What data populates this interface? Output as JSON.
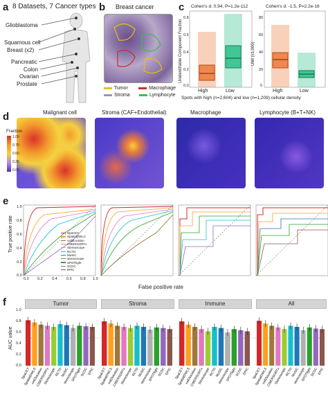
{
  "panels": {
    "a": {
      "label": "a",
      "title": "8 Datasets, 7 Cancer types",
      "sites": [
        "Glioblastoma",
        "Squamous cell",
        "Breast (x2)",
        "Pancreatic",
        "Colon",
        "Ovarian",
        "Prostate"
      ]
    },
    "b": {
      "label": "b",
      "title": "Breast cancer",
      "legend": [
        {
          "name": "Tumor",
          "color": "#e8c200"
        },
        {
          "name": "Macrophage",
          "color": "#cc2a2a"
        },
        {
          "name": "Stroma",
          "color": "#9a9a9a"
        },
        {
          "name": "Lymphocyte",
          "color": "#39c050"
        }
      ]
    },
    "c": {
      "label": "c",
      "left_title": "Cohen's d: 0.94, P=1.2e-112",
      "right_title": "Cohen's d: -1.5, P=2.2e-16",
      "left_ylabel": "Unidentifiable Component Fraction",
      "right_ylabel": "UMI (x1,000)",
      "xlabel": "Spots with high (n=2,604) and low (n=1,209) cellular density",
      "categories": [
        "High",
        "Low"
      ],
      "left_yticks": [
        "0.0",
        "0.2",
        "0.4",
        "0.6",
        "0.8"
      ],
      "right_yticks": [
        "0",
        "20",
        "40",
        "60",
        "80"
      ],
      "colors": {
        "high": "#ee7a3a",
        "low": "#2fbf8a"
      }
    },
    "d": {
      "label": "d",
      "titles": [
        "Malignant cell",
        "Stroma (CAF+Endothelial)",
        "Macrophage",
        "Lymphocyte (B+T+NK)"
      ],
      "legend_title": "Fraction",
      "legend_ticks": [
        "1.00",
        "0.75",
        "0.50",
        "0.25",
        "0.00"
      ]
    },
    "e": {
      "label": "e",
      "ylabel": "True positive rate",
      "xlabel": "False positive rate",
      "ticks": [
        "0.0",
        "0.2",
        "0.4",
        "0.6",
        "0.8",
        "1.0"
      ],
      "methods": [
        {
          "name": "SpaCET",
          "color": "#d62728"
        },
        {
          "name": "SpatialDWLS",
          "color": "#ff9f1c"
        },
        {
          "name": "cell2location",
          "color": "#8c6d31"
        },
        {
          "name": "CIBERSORTx",
          "color": "#e377c2"
        },
        {
          "name": "Stereoscope",
          "color": "#bcbd22"
        },
        {
          "name": "RCTD",
          "color": "#17becf"
        },
        {
          "name": "MuSiC",
          "color": "#1f77b4"
        },
        {
          "name": "stereoscope",
          "color": "#7f7f7f"
        },
        {
          "name": "SPOTlight",
          "color": "#2ca02c"
        },
        {
          "name": "SCDC",
          "color": "#9467bd"
        },
        {
          "name": "EPIC",
          "color": "#8c564b"
        }
      ]
    },
    "f": {
      "label": "f",
      "ylabel": "AUC value",
      "yticks": [
        "1.0",
        "0.8",
        "0.6",
        "0.4",
        "0.2",
        "0.0"
      ],
      "groups": [
        "Tumor",
        "Stroma",
        "Immune",
        "All"
      ],
      "methods": [
        "SpaCET",
        "SpatialDWLS",
        "cell2location",
        "CIBERSORTx",
        "Stereoscope",
        "RCTD",
        "MuSiC",
        "stereoscope",
        "SPOTlight",
        "SCDC",
        "EPIC"
      ],
      "colors": [
        "#d62728",
        "#ff9f1c",
        "#a0783a",
        "#e377c2",
        "#9acd32",
        "#17becf",
        "#1f77b4",
        "#b0b0b0",
        "#2ca02c",
        "#9467bd",
        "#8c564b"
      ],
      "values": {
        "Tumor": [
          0.82,
          0.78,
          0.74,
          0.72,
          0.7,
          0.75,
          0.73,
          0.68,
          0.72,
          0.71,
          0.7
        ],
        "Stroma": [
          0.8,
          0.76,
          0.72,
          0.7,
          0.68,
          0.72,
          0.7,
          0.65,
          0.69,
          0.68,
          0.66
        ],
        "Immune": [
          0.8,
          0.74,
          0.7,
          0.66,
          0.62,
          0.7,
          0.68,
          0.6,
          0.66,
          0.64,
          0.62
        ],
        "All": [
          0.81,
          0.76,
          0.72,
          0.69,
          0.66,
          0.72,
          0.7,
          0.64,
          0.69,
          0.67,
          0.66
        ]
      }
    }
  }
}
